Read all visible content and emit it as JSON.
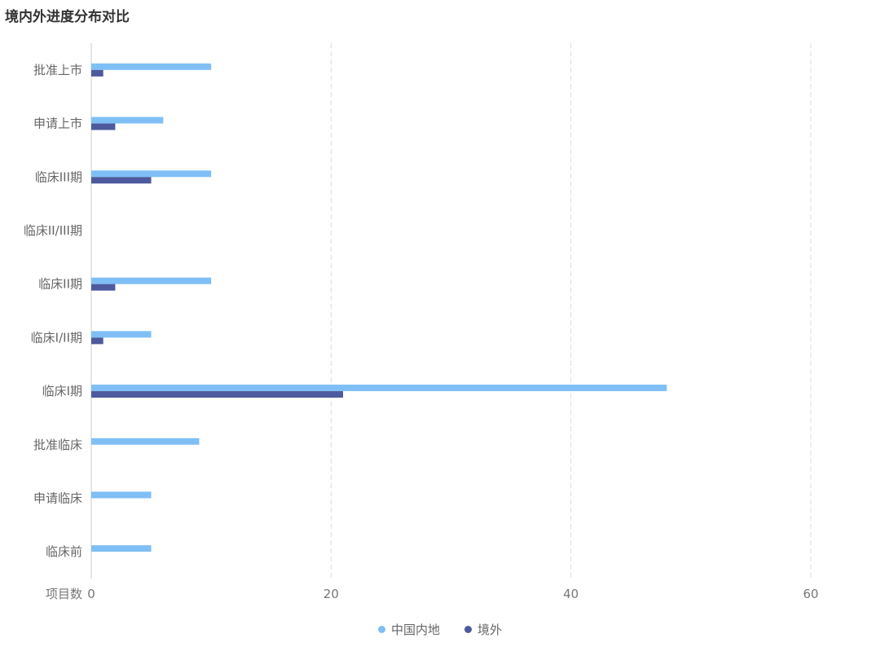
{
  "chart_data": {
    "type": "bar",
    "orientation": "horizontal",
    "title": "境内外进度分布对比",
    "xlabel": "项目数",
    "ylabel": "",
    "categories": [
      "批准上市",
      "申请上市",
      "临床III期",
      "临床II/III期",
      "临床II期",
      "临床I/II期",
      "临床I期",
      "批准临床",
      "申请临床",
      "临床前"
    ],
    "series": [
      {
        "name": "中国内地",
        "color": "#7fbff5",
        "values": [
          10,
          6,
          10,
          0,
          10,
          5,
          48,
          9,
          5,
          5
        ]
      },
      {
        "name": "境外",
        "color": "#4e5a9e",
        "values": [
          1,
          2,
          5,
          0,
          2,
          1,
          21,
          0,
          0,
          0
        ]
      }
    ],
    "xlim": [
      0,
      60
    ],
    "xticks": [
      0,
      20,
      40,
      60
    ],
    "grid": "vertical-dashed",
    "legend_position": "bottom-center"
  }
}
